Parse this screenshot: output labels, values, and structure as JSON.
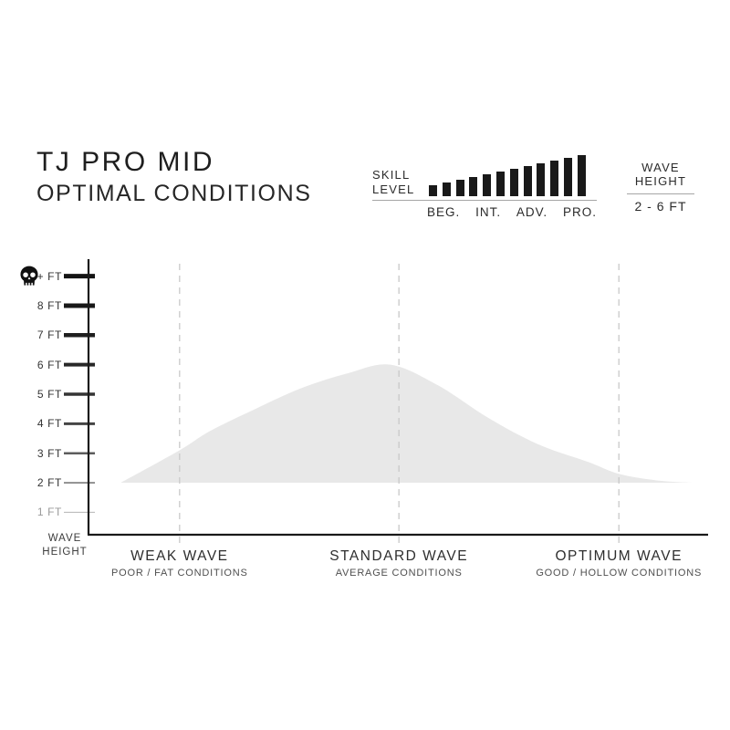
{
  "header": {
    "title": "TJ PRO MID",
    "subtitle": "OPTIMAL CONDITIONS"
  },
  "skill": {
    "label": [
      "SKILL",
      "LEVEL"
    ],
    "levels": [
      "BEG.",
      "INT.",
      "ADV.",
      "PRO."
    ],
    "bar_count": 12,
    "bar_color": "#191919",
    "range_shown": "BEG. to PRO. (full scale, ascending bars)"
  },
  "wave_summary": {
    "label": [
      "WAVE",
      "HEIGHT"
    ],
    "value": "2 - 6 FT"
  },
  "chart_data": {
    "type": "area",
    "title": "TJ PRO MID OPTIMAL CONDITIONS",
    "ylabel": [
      "WAVE",
      "HEIGHT"
    ],
    "y_ticks": [
      "+ FT",
      "8 FT",
      "7 FT",
      "6 FT",
      "5 FT",
      "4 FT",
      "3 FT",
      "2 FT",
      "1 FT"
    ],
    "y_tick_ft": [
      9,
      8,
      7,
      6,
      5,
      4,
      3,
      2,
      1
    ],
    "y_axis_icon": "skull",
    "ylim_ft": [
      0,
      9
    ],
    "baseline_ft": 2,
    "peak": {
      "category": "STANDARD WAVE",
      "ft": 6
    },
    "optimal_range_ft": [
      2,
      6
    ],
    "grid": "dashed vertical line per category",
    "legend": "none",
    "categories": [
      {
        "label": "WEAK WAVE",
        "sub": "POOR / FAT CONDITIONS",
        "pos": 0.147,
        "curve_ft": 3.1
      },
      {
        "label": "STANDARD WAVE",
        "sub": "AVERAGE CONDITIONS",
        "pos": 0.501,
        "curve_ft": 6.0
      },
      {
        "label": "OPTIMUM WAVE",
        "sub": "GOOD / HOLLOW CONDITIONS",
        "pos": 0.856,
        "curve_ft": 2.3
      }
    ],
    "curve_points": [
      {
        "t": 0.052,
        "ft": 2.0
      },
      {
        "t": 0.147,
        "ft": 3.1
      },
      {
        "t": 0.196,
        "ft": 3.75
      },
      {
        "t": 0.269,
        "ft": 4.5
      },
      {
        "t": 0.343,
        "ft": 5.2
      },
      {
        "t": 0.417,
        "ft": 5.7
      },
      {
        "t": 0.487,
        "ft": 6.0
      },
      {
        "t": 0.564,
        "ft": 5.3
      },
      {
        "t": 0.645,
        "ft": 4.2
      },
      {
        "t": 0.726,
        "ft": 3.3
      },
      {
        "t": 0.807,
        "ft": 2.7
      },
      {
        "t": 0.856,
        "ft": 2.3
      },
      {
        "t": 0.917,
        "ft": 2.08
      },
      {
        "t": 0.973,
        "ft": 2.0
      }
    ],
    "fill_color": "#e8e8e8",
    "axis_color": "#1a1a1a",
    "dashed_line_color": "#c9c9c9"
  }
}
